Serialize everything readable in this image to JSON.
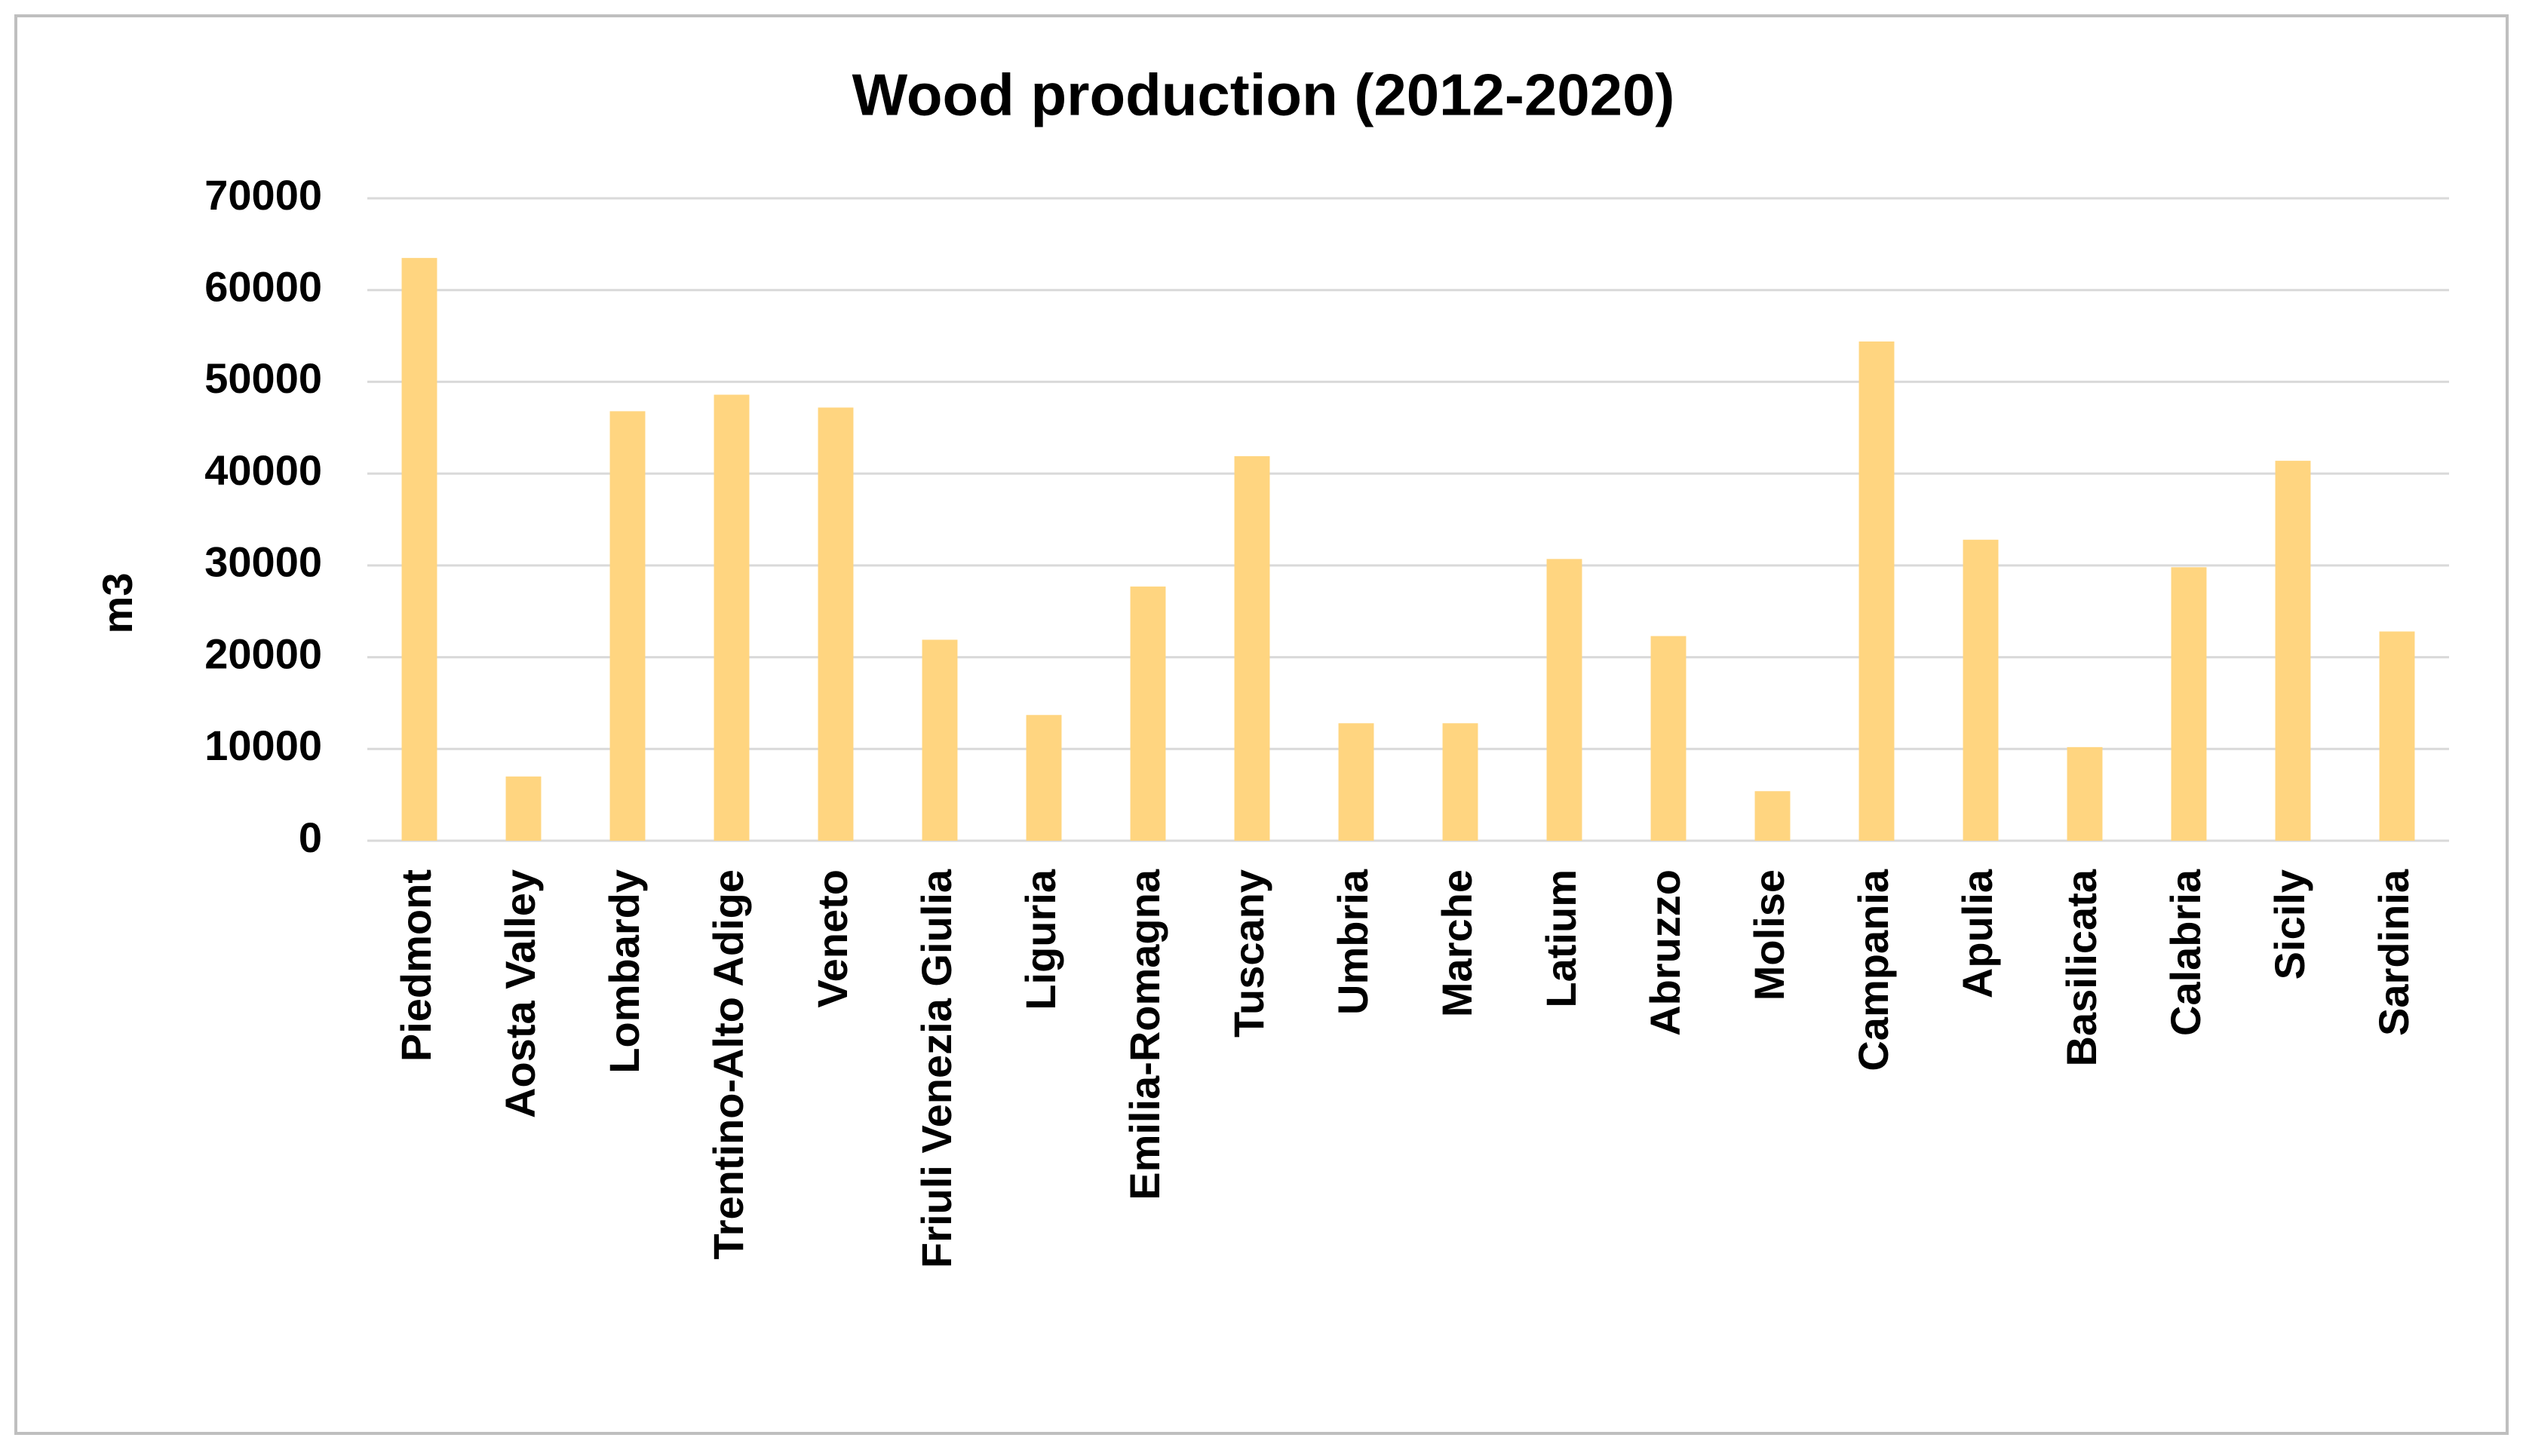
{
  "chart_data": {
    "type": "bar",
    "title": "Wood production (2012-2020)",
    "y_label": "m3",
    "categories": [
      "Piedmont",
      "Aosta Valley",
      "Lombardy",
      "Trentino-Alto Adige",
      "Veneto",
      "Friuli Venezia Giulia",
      "Liguria",
      "Emilia-Romagna",
      "Tuscany",
      "Umbria",
      "Marche",
      "Latium",
      "Abruzzo",
      "Molise",
      "Campania",
      "Apulia",
      "Basilicata",
      "Calabria",
      "Sicily",
      "Sardinia"
    ],
    "values": [
      63500,
      7000,
      46800,
      48600,
      47200,
      21900,
      13700,
      27700,
      41900,
      12800,
      12800,
      30700,
      22300,
      5400,
      54400,
      32800,
      10200,
      29800,
      41400,
      22800
    ],
    "color": "#ffd580",
    "ylim": [
      0,
      70000
    ],
    "yticks": [
      0,
      10000,
      20000,
      30000,
      40000,
      50000,
      60000,
      70000
    ],
    "grid": true
  }
}
